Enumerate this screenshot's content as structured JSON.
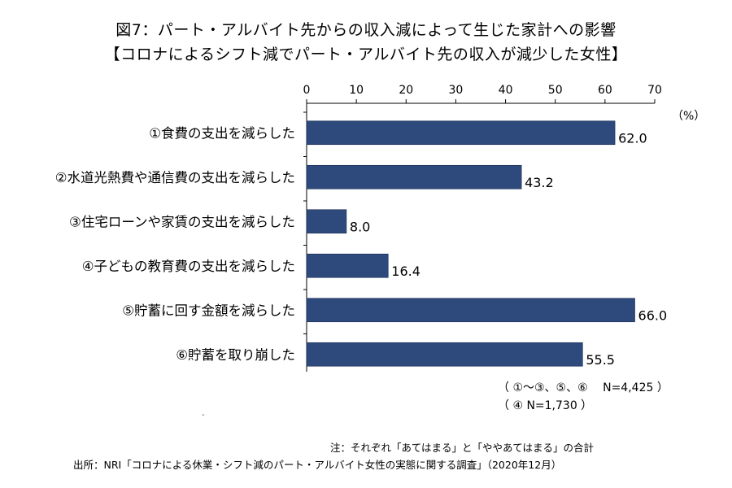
{
  "title": "図7：パート・アルバイト先からの収入減によって生じた家計への影響",
  "subtitle": "【コロナによるシフト減でパート・アルバイト先の収入が減少した女性】",
  "unit_label": "（%）",
  "n_note_1": "（ ①～③、⑤、⑥　 N=4,425 ）",
  "n_note_2": "（ ④ N=1,730 ）",
  "dash_mark": "-",
  "note": "注：それぞれ「あてはまる」と「ややあてはまる」の合計",
  "source": "出所：NRI「コロナによる休業・シフト減のパート・アルバイト女性の実態に関する調査」（2020年12月）",
  "colors": {
    "bar": "#2e4a7d",
    "axis": "#000000"
  },
  "chart_data": {
    "type": "bar",
    "orientation": "horizontal",
    "categories": [
      "①食費の支出を減らした",
      "②水道光熱費や通信費の支出を減らした",
      "③住宅ローンや家賃の支出を減らした",
      "④子どもの教育費の支出を減らした",
      "⑤貯蓄に回す金額を減らした",
      "⑥貯蓄を取り崩した"
    ],
    "values": [
      62.0,
      43.2,
      8.0,
      16.4,
      66.0,
      55.5
    ],
    "value_labels": [
      "62.0",
      "43.2",
      "8.0",
      "16.4",
      "66.0",
      "55.5"
    ],
    "xticks": [
      "0",
      "10",
      "20",
      "30",
      "40",
      "50",
      "60",
      "70"
    ],
    "xlim": [
      0,
      70
    ],
    "grid": false,
    "legend": "none"
  }
}
